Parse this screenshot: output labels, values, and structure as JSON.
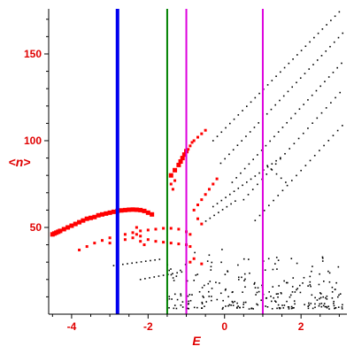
{
  "chart_data": {
    "type": "scatter",
    "title": "",
    "xlabel": "E",
    "ylabel": "<n>",
    "xlim": [
      -4.6,
      3.2
    ],
    "ylim": [
      0,
      176
    ],
    "x_ticks": [
      -4,
      -2,
      0,
      2
    ],
    "x_tick_labels": [
      "-4",
      "-2",
      "0",
      "2"
    ],
    "y_ticks": [
      50,
      100,
      150
    ],
    "y_tick_labels": [
      "50",
      "100",
      "150"
    ],
    "grid": false,
    "legend": "none",
    "vertical_lines": [
      {
        "x": -2.8,
        "color": "#0000ee"
      },
      {
        "x": -1.5,
        "color": "#008000"
      },
      {
        "x": -1.0,
        "color": "#dd00dd"
      },
      {
        "x": 1.0,
        "color": "#dd00dd"
      }
    ],
    "series": [
      {
        "color": "#ff0000",
        "marker": "large-square",
        "points": [
          [
            -4.5,
            46
          ],
          [
            -4.45,
            46.5
          ],
          [
            -4.4,
            47
          ],
          [
            -4.35,
            47.5
          ],
          [
            -4.3,
            48
          ],
          [
            -4.2,
            49
          ],
          [
            -4.1,
            50
          ],
          [
            -4.0,
            51
          ],
          [
            -3.9,
            52
          ],
          [
            -3.8,
            53
          ],
          [
            -3.7,
            54
          ],
          [
            -3.6,
            55
          ],
          [
            -3.5,
            55.5
          ],
          [
            -3.4,
            56
          ],
          [
            -3.3,
            57
          ],
          [
            -3.2,
            57.5
          ],
          [
            -3.1,
            58
          ],
          [
            -3.0,
            58.5
          ],
          [
            -2.9,
            59
          ],
          [
            -2.8,
            59.5
          ],
          [
            -2.7,
            59.8
          ],
          [
            -2.6,
            60
          ],
          [
            -2.5,
            60.2
          ],
          [
            -2.4,
            60.3
          ],
          [
            -2.3,
            60.2
          ],
          [
            -2.2,
            60
          ],
          [
            -2.1,
            59.5
          ],
          [
            -2.0,
            58.5
          ],
          [
            -1.9,
            57.5
          ],
          [
            -1.4,
            80
          ],
          [
            -1.3,
            83
          ],
          [
            -1.2,
            86
          ],
          [
            -1.15,
            88
          ],
          [
            -1.1,
            90
          ],
          [
            -1.05,
            92
          ],
          [
            -1.0,
            94
          ]
        ]
      },
      {
        "color": "#ff0000",
        "marker": "small-square",
        "points": [
          [
            -3.8,
            37
          ],
          [
            -3.6,
            39
          ],
          [
            -3.4,
            41
          ],
          [
            -3.2,
            42.5
          ],
          [
            -3.0,
            44
          ],
          [
            -2.8,
            45
          ],
          [
            -2.6,
            46
          ],
          [
            -2.4,
            47
          ],
          [
            -2.2,
            48
          ],
          [
            -2.0,
            48.5
          ],
          [
            -1.8,
            49
          ],
          [
            -1.6,
            49.5
          ],
          [
            -1.4,
            49.5
          ],
          [
            -1.2,
            49
          ],
          [
            -1.0,
            47.5
          ],
          [
            -0.9,
            46
          ],
          [
            -3.0,
            41
          ],
          [
            -2.8,
            42
          ],
          [
            -2.6,
            43
          ],
          [
            -2.4,
            44
          ],
          [
            -2.2,
            45
          ],
          [
            -2.0,
            43
          ],
          [
            -1.8,
            42
          ],
          [
            -1.6,
            41.5
          ],
          [
            -1.4,
            41
          ],
          [
            -1.2,
            40.5
          ],
          [
            -1.0,
            40
          ],
          [
            -0.9,
            39
          ],
          [
            -2.3,
            50
          ],
          [
            -2.3,
            46
          ],
          [
            -2.2,
            42
          ],
          [
            -2.1,
            40
          ],
          [
            -0.95,
            95
          ],
          [
            -0.9,
            97
          ],
          [
            -0.85,
            99
          ],
          [
            -0.8,
            100
          ],
          [
            -0.7,
            102
          ],
          [
            -0.6,
            104
          ],
          [
            -0.5,
            106
          ],
          [
            -1.4,
            75
          ],
          [
            -1.35,
            72
          ],
          [
            -1.3,
            77
          ],
          [
            -0.8,
            60
          ],
          [
            -0.7,
            63
          ],
          [
            -0.6,
            66
          ],
          [
            -0.5,
            69
          ],
          [
            -0.4,
            72
          ],
          [
            -0.3,
            75
          ],
          [
            -0.2,
            78
          ],
          [
            -0.7,
            55
          ],
          [
            -0.6,
            52
          ],
          [
            -0.9,
            30
          ],
          [
            -0.8,
            32
          ],
          [
            -0.6,
            29
          ]
        ]
      },
      {
        "color": "#000000",
        "marker": "dot",
        "families": [
          {
            "x_start": -0.3,
            "x_end": 3.1,
            "y_start": 100,
            "slope": 22.5,
            "step": 0.11
          },
          {
            "x_start": -0.1,
            "x_end": 3.1,
            "y_start": 87,
            "slope": 23.5,
            "step": 0.11
          },
          {
            "x_start": 0.2,
            "x_end": 3.1,
            "y_start": 76,
            "slope": 24,
            "step": 0.11
          },
          {
            "x_start": 0.5,
            "x_end": 3.1,
            "y_start": 66,
            "slope": 24.5,
            "step": 0.12
          },
          {
            "x_start": 0.8,
            "x_end": 3.1,
            "y_start": 54,
            "slope": 24,
            "step": 0.12
          },
          {
            "x_start": -0.3,
            "x_end": 1.5,
            "y_start": 62,
            "slope": 16,
            "step": 0.11
          },
          {
            "x_start": -0.6,
            "x_end": 0.3,
            "y_start": 52,
            "slope": 15,
            "step": 0.11
          },
          {
            "x_start": 1.0,
            "x_end": 1.6,
            "y_start": 88,
            "slope": -20,
            "step": 0.12
          },
          {
            "x_start": -2.9,
            "x_end": -1.6,
            "y_start": 28,
            "slope": 3,
            "step": 0.12
          },
          {
            "x_start": -2.2,
            "x_end": -1.0,
            "y_start": 20,
            "slope": 4,
            "step": 0.12
          }
        ],
        "cloud": {
          "x_range": [
            -1.5,
            3.1
          ],
          "y_range": [
            3,
            38
          ],
          "count": 260,
          "seed": 7
        }
      }
    ]
  }
}
